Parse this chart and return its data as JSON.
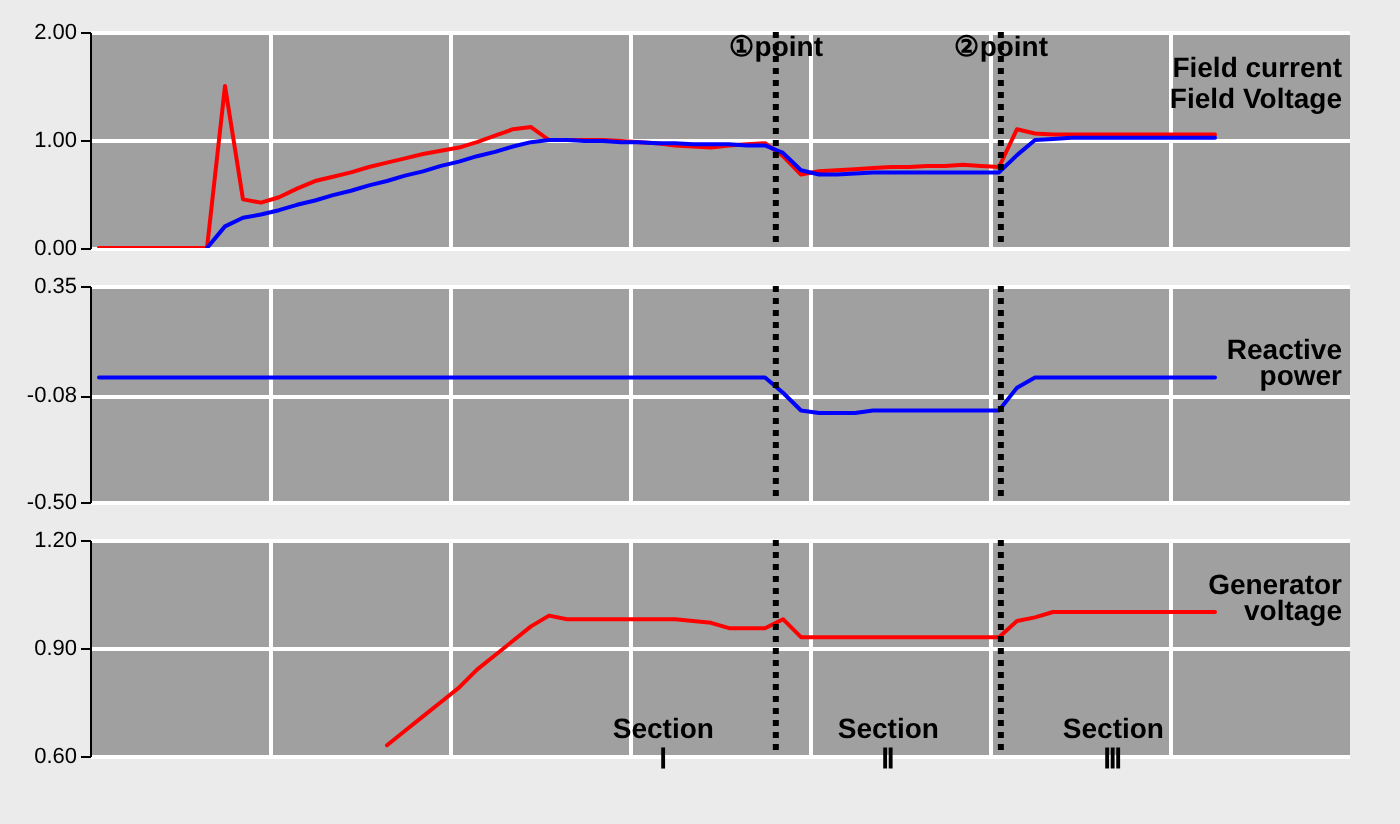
{
  "chart_data": [
    {
      "type": "line",
      "categories": [
        null,
        null,
        null,
        null,
        null,
        null,
        null,
        null,
        null,
        null,
        null,
        null,
        null,
        null,
        null,
        null,
        null,
        null,
        null,
        null,
        null,
        null,
        null,
        null,
        null,
        null,
        null,
        null,
        null,
        null,
        null,
        null,
        null,
        null,
        null,
        null,
        null,
        null,
        null,
        null,
        null,
        null,
        null,
        null,
        null,
        null,
        null,
        null,
        null,
        null,
        null,
        null,
        null,
        null,
        null,
        null,
        null,
        null,
        null,
        null,
        null,
        null,
        null,
        null,
        null,
        null,
        null,
        null,
        null,
        null
      ],
      "ylim": [
        0,
        2
      ],
      "yticks": [
        {
          "value": 0,
          "label": "0.00"
        },
        {
          "value": 1,
          "label": "1.00"
        },
        {
          "value": 2,
          "label": "2.00"
        }
      ],
      "grid": true,
      "tick_labels": "y",
      "legend": false,
      "series": [
        {
          "name": "Field current",
          "color": "#ff0000",
          "values": [
            0,
            0,
            0,
            0,
            0,
            0,
            0,
            1.5,
            0.45,
            0.42,
            0.47,
            0.55,
            0.62,
            0.66,
            0.7,
            0.75,
            0.79,
            0.83,
            0.87,
            0.9,
            0.93,
            0.98,
            1.04,
            1.1,
            1.12,
            1.0,
            1.0,
            1.0,
            1.0,
            0.99,
            0.98,
            0.97,
            0.95,
            0.94,
            0.93,
            0.95,
            0.96,
            0.97,
            0.85,
            0.68,
            0.71,
            0.72,
            0.73,
            0.74,
            0.75,
            0.75,
            0.76,
            0.76,
            0.77,
            0.76,
            0.75,
            1.1,
            1.06,
            1.05,
            1.05,
            1.05,
            1.05,
            1.05,
            1.05,
            1.05,
            1.05,
            1.05,
            1.05,
            null,
            null,
            null,
            null,
            null,
            null,
            null
          ]
        },
        {
          "name": "Field Voltage",
          "color": "#0000ff",
          "values": [
            null,
            null,
            null,
            null,
            null,
            null,
            0,
            0.2,
            0.28,
            0.31,
            0.35,
            0.4,
            0.44,
            0.49,
            0.53,
            0.58,
            0.62,
            0.67,
            0.71,
            0.76,
            0.8,
            0.85,
            0.89,
            0.94,
            0.98,
            1.0,
            1.0,
            0.99,
            0.99,
            0.98,
            0.98,
            0.97,
            0.97,
            0.96,
            0.96,
            0.96,
            0.95,
            0.95,
            0.88,
            0.72,
            0.68,
            0.68,
            0.69,
            0.7,
            0.7,
            0.7,
            0.7,
            0.7,
            0.7,
            0.7,
            0.7,
            0.86,
            1.0,
            1.01,
            1.02,
            1.02,
            1.02,
            1.02,
            1.02,
            1.02,
            1.02,
            1.02,
            1.02,
            null,
            null,
            null,
            null,
            null,
            null,
            null
          ]
        }
      ],
      "annotations": [
        "①point",
        "②point"
      ]
    },
    {
      "type": "line",
      "categories": [
        null,
        null,
        null,
        null,
        null,
        null,
        null,
        null,
        null,
        null,
        null,
        null,
        null,
        null,
        null,
        null,
        null,
        null,
        null,
        null,
        null,
        null,
        null,
        null,
        null,
        null,
        null,
        null,
        null,
        null,
        null,
        null,
        null,
        null,
        null,
        null,
        null,
        null,
        null,
        null,
        null,
        null,
        null,
        null,
        null,
        null,
        null,
        null,
        null,
        null,
        null,
        null,
        null,
        null,
        null,
        null,
        null,
        null,
        null,
        null,
        null,
        null,
        null,
        null,
        null,
        null,
        null,
        null,
        null,
        null
      ],
      "ylim": [
        -0.5,
        0.35
      ],
      "yticks": [
        {
          "value": -0.5,
          "label": "-0.50"
        },
        -0.08,
        0.35
      ],
      "grid": true,
      "tick_labels": "y",
      "legend": false,
      "series": [
        {
          "name": "Reactive power",
          "color": "#0000ff",
          "values": [
            -0.01,
            -0.01,
            -0.01,
            -0.01,
            -0.01,
            -0.01,
            -0.01,
            -0.01,
            -0.01,
            -0.01,
            -0.01,
            -0.01,
            -0.01,
            -0.01,
            -0.01,
            -0.01,
            -0.01,
            -0.01,
            -0.01,
            -0.01,
            -0.01,
            -0.01,
            -0.01,
            -0.01,
            -0.01,
            -0.01,
            -0.01,
            -0.01,
            -0.01,
            -0.01,
            -0.01,
            -0.01,
            -0.01,
            -0.01,
            -0.01,
            -0.01,
            -0.01,
            -0.01,
            -0.07,
            -0.14,
            -0.15,
            -0.15,
            -0.15,
            -0.14,
            -0.14,
            -0.14,
            -0.14,
            -0.14,
            -0.14,
            -0.14,
            -0.14,
            -0.05,
            -0.01,
            -0.01,
            -0.01,
            -0.01,
            -0.01,
            -0.01,
            -0.01,
            -0.01,
            -0.01,
            -0.01,
            -0.01,
            null,
            null,
            null,
            null,
            null,
            null,
            null
          ]
        }
      ]
    },
    {
      "type": "line",
      "categories": [
        null,
        null,
        null,
        null,
        null,
        null,
        null,
        null,
        null,
        null,
        null,
        null,
        null,
        null,
        null,
        null,
        null,
        null,
        null,
        null,
        null,
        null,
        null,
        null,
        null,
        null,
        null,
        null,
        null,
        null,
        null,
        null,
        null,
        null,
        null,
        null,
        null,
        null,
        null,
        null,
        null,
        null,
        null,
        null,
        null,
        null,
        null,
        null,
        null,
        null,
        null,
        null,
        null,
        null,
        null,
        null,
        null,
        null,
        null,
        null,
        null,
        null,
        null,
        null,
        null,
        null,
        null,
        null,
        null,
        null
      ],
      "ylim": [
        0.6,
        1.2
      ],
      "yticks": [
        {
          "value": 0.6,
          "label": "0.60"
        },
        {
          "value": 0.9,
          "label": "0.90"
        },
        {
          "value": 1.2,
          "label": "1.20"
        }
      ],
      "grid": true,
      "tick_labels": "y",
      "legend": false,
      "series": [
        {
          "name": "Generator voltage",
          "color": "#ff0000",
          "values": [
            null,
            null,
            null,
            null,
            null,
            null,
            null,
            null,
            null,
            null,
            null,
            null,
            null,
            null,
            null,
            null,
            0.63,
            0.67,
            0.71,
            0.75,
            0.79,
            0.84,
            0.88,
            0.92,
            0.96,
            0.99,
            0.98,
            0.98,
            0.98,
            0.98,
            0.98,
            0.98,
            0.98,
            0.975,
            0.97,
            0.955,
            0.955,
            0.955,
            0.98,
            0.93,
            0.93,
            0.93,
            0.93,
            0.93,
            0.93,
            0.93,
            0.93,
            0.93,
            0.93,
            0.93,
            0.93,
            0.975,
            0.985,
            1.0,
            1.0,
            1.0,
            1.0,
            1.0,
            1.0,
            1.0,
            1.0,
            1.0,
            1.0,
            null,
            null,
            null,
            null,
            null,
            null,
            null
          ]
        }
      ],
      "annotations": [
        "Section Ⅰ",
        "Section Ⅱ",
        "Section Ⅲ"
      ]
    }
  ]
}
